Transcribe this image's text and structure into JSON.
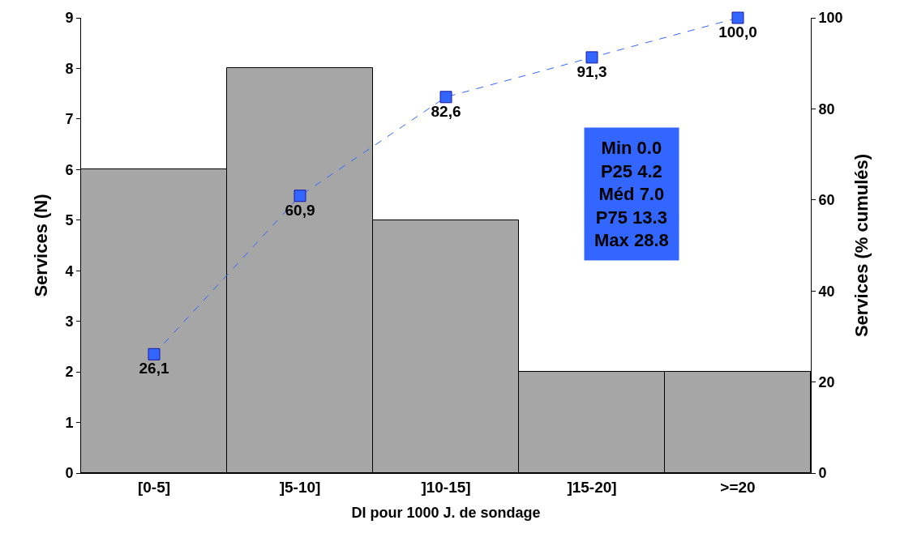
{
  "chart_data": {
    "type": "bar",
    "xlabel": "DI pour 1000 J. de sondage",
    "ylabel": "Services (N)",
    "y2label": "Services (% cumulés)",
    "categories": [
      "[0-5]",
      "]5-10]",
      "]10-15]",
      "]15-20]",
      ">=20"
    ],
    "series": [
      {
        "color": "#a6a6a6",
        "values": [
          6,
          8,
          5,
          2,
          2
        ]
      },
      {
        "type": "line",
        "axis": "y2",
        "color": "#3366ff",
        "values": [
          26.1,
          60.9,
          82.6,
          91.3,
          100.0
        ],
        "value_labels": [
          "26,1",
          "60,9",
          "82,6",
          "91,3",
          "100,0"
        ]
      }
    ],
    "ylim": [
      0,
      9
    ],
    "yticks": [
      0,
      1,
      2,
      3,
      4,
      5,
      6,
      7,
      8,
      9
    ],
    "y2lim": [
      0,
      100
    ],
    "y2ticks": [
      0,
      20,
      40,
      60,
      80,
      100
    ],
    "marker": "square",
    "line_style": "dashed",
    "annotations": [
      "Min 0.0",
      "P25 4.2",
      "Méd 7.0",
      "P75 13.3",
      "Max 28.8"
    ]
  }
}
